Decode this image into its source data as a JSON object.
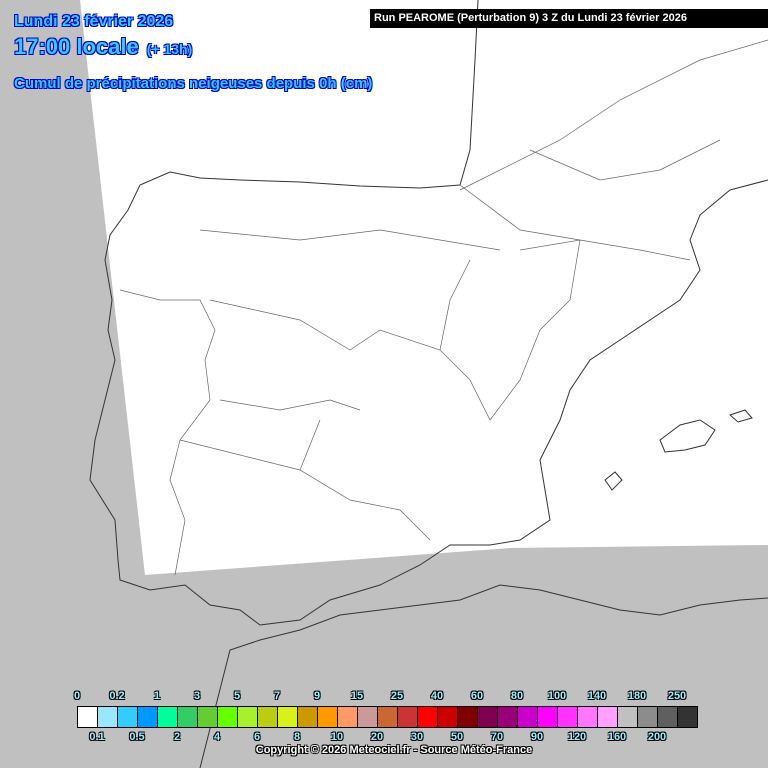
{
  "header": {
    "date": "Lundi 23 février 2026",
    "time": "17:00 locale",
    "lead": "(+ 13h)",
    "variable": "Cumul de précipitations neigeuses depuis 0h (cm)",
    "run": "Run PEAROME (Perturbation 9) 3 Z du Lundi 23 février 2026"
  },
  "colors": {
    "background": "#c0c0c0",
    "domain": "#ffffff",
    "title_text": "#33ccff"
  },
  "legend": {
    "colors": [
      "#ffffff",
      "#99e6ff",
      "#33ccff",
      "#0099ff",
      "#00ff99",
      "#33cc66",
      "#66cc33",
      "#66ff00",
      "#a6f030",
      "#bccc14",
      "#d9f01a",
      "#cc9900",
      "#ff9900",
      "#ff9966",
      "#cc9999",
      "#cc6633",
      "#cc3333",
      "#ff0000",
      "#cc0000",
      "#800000",
      "#800050",
      "#990077",
      "#cc00cc",
      "#ff00ff",
      "#ff33ff",
      "#ff77ff",
      "#ffa0ff",
      "#c0c0c0",
      "#8c8c8c",
      "#5f5f5f",
      "#333333"
    ],
    "top_labels": [
      "0",
      "0.2",
      "1",
      "3",
      "5",
      "7",
      "9",
      "15",
      "25",
      "40",
      "60",
      "80",
      "100",
      "140",
      "180",
      "250"
    ],
    "bottom_labels": [
      "0.1",
      "0.5",
      "2",
      "4",
      "6",
      "8",
      "10",
      "20",
      "30",
      "50",
      "70",
      "90",
      "120",
      "160",
      "200"
    ]
  },
  "copyright": "Copyright © 2026 Meteociel.fr - Source Météo-France"
}
